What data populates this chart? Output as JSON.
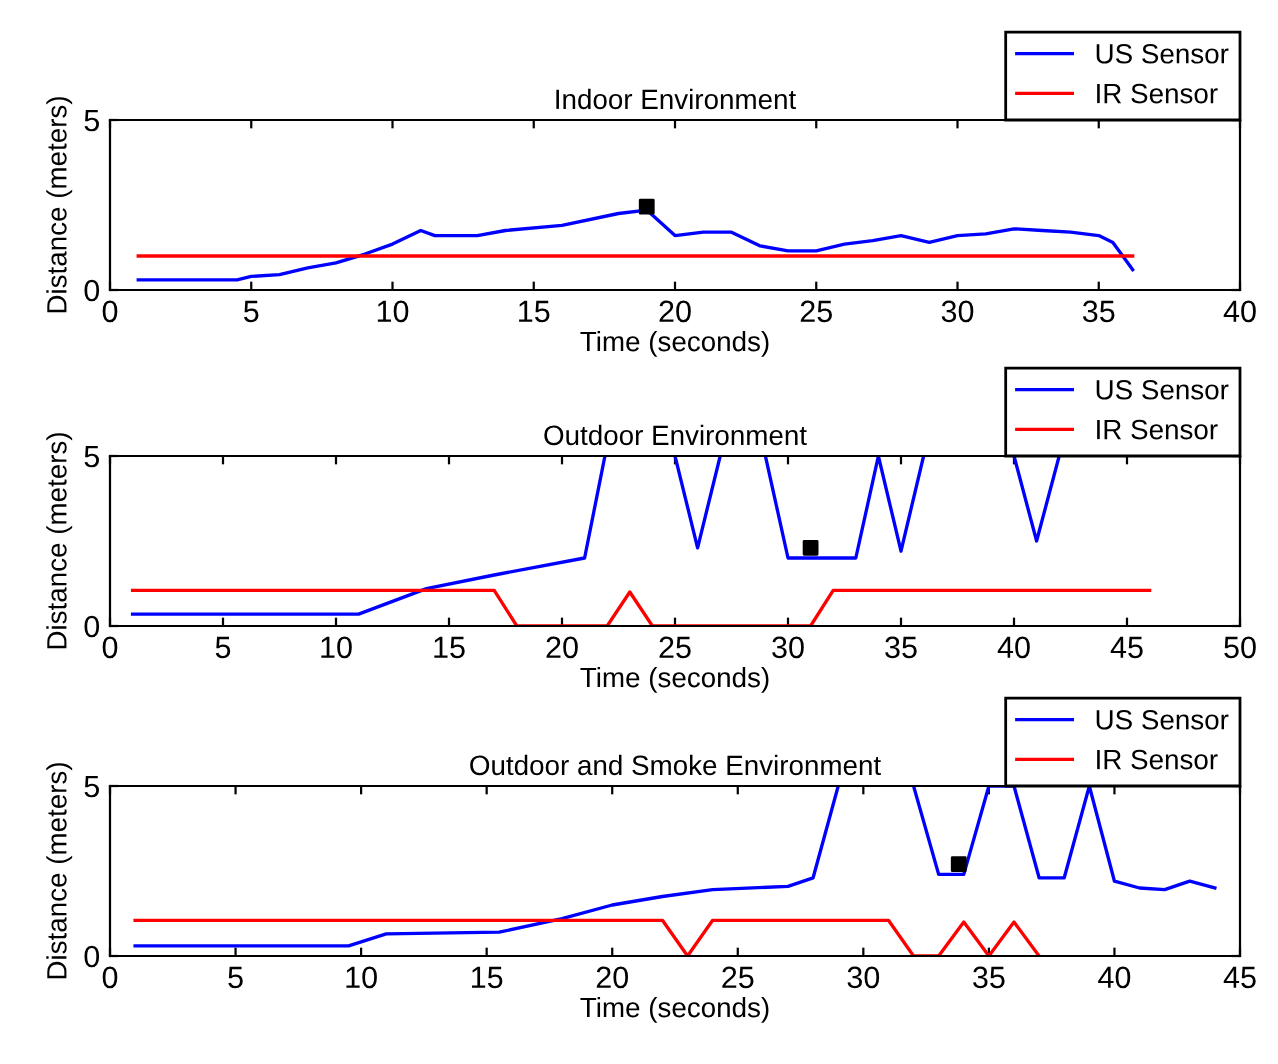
{
  "chart_data": [
    {
      "type": "line",
      "title": "Indoor Environment",
      "xlabel": "Time (seconds)",
      "ylabel": "Distance (meters)",
      "xlim": [
        0,
        40
      ],
      "xticks": [
        0,
        5,
        10,
        15,
        20,
        25,
        30,
        35,
        40
      ],
      "ylim": [
        0,
        5
      ],
      "yticks": [
        0,
        5
      ],
      "grid": false,
      "legend": "top right",
      "line_style": "solid",
      "series": [
        {
          "name": "US Sensor",
          "color": "#0000ff",
          "marker": "none",
          "x": [
            1,
            4.5,
            5,
            6,
            7,
            8,
            9,
            10,
            11,
            11.5,
            13,
            14,
            16,
            18,
            19,
            20,
            21,
            22,
            23,
            24,
            25,
            26,
            27,
            28,
            29,
            30,
            31,
            32,
            33,
            34,
            35,
            35.5,
            36.2
          ],
          "values": [
            0.3,
            0.3,
            0.4,
            0.45,
            0.65,
            0.8,
            1.05,
            1.35,
            1.75,
            1.6,
            1.6,
            1.75,
            1.9,
            2.25,
            2.35,
            1.6,
            1.7,
            1.7,
            1.3,
            1.15,
            1.15,
            1.35,
            1.45,
            1.6,
            1.4,
            1.6,
            1.65,
            1.8,
            1.75,
            1.7,
            1.6,
            1.4,
            0.6
          ]
        },
        {
          "name": "IR Sensor",
          "color": "#ff0000",
          "marker": "none",
          "x": [
            1,
            36.2
          ],
          "values": [
            1.0,
            1.0
          ]
        },
        {
          "type": "scatter",
          "color": "#000000",
          "marker": "square",
          "x": [
            19
          ],
          "values": [
            2.45
          ]
        }
      ]
    },
    {
      "type": "line",
      "title": "Outdoor Environment",
      "xlabel": "Time (seconds)",
      "ylabel": "Distance (meters)",
      "xlim": [
        0,
        50
      ],
      "xticks": [
        0,
        5,
        10,
        15,
        20,
        25,
        30,
        35,
        40,
        45,
        50
      ],
      "ylim": [
        0,
        5
      ],
      "yticks": [
        0,
        5
      ],
      "grid": false,
      "legend": "top right",
      "line_style": "solid",
      "series": [
        {
          "name": "US Sensor",
          "color": "#0000ff",
          "marker": "none",
          "x": [
            1,
            11,
            14,
            17,
            21,
            21.9,
            23.5,
            25,
            26,
            27,
            28,
            29,
            30,
            31,
            33,
            34,
            35,
            36,
            38,
            40,
            41,
            42
          ],
          "values": [
            0.35,
            0.35,
            1.1,
            1.5,
            2.0,
            5,
            null,
            5,
            2.3,
            5,
            null,
            5,
            2.0,
            2.0,
            2.0,
            5,
            2.2,
            5,
            null,
            5,
            2.5,
            5
          ]
        },
        {
          "name": "IR Sensor",
          "color": "#ff0000",
          "marker": "none",
          "x": [
            1,
            17,
            18,
            22,
            23,
            24,
            31,
            32,
            46
          ],
          "values": [
            1.05,
            1.05,
            0,
            0,
            1.0,
            0,
            0,
            1.05,
            1.05
          ]
        },
        {
          "type": "scatter",
          "color": "#000000",
          "marker": "square",
          "x": [
            31
          ],
          "values": [
            2.3
          ]
        }
      ]
    },
    {
      "type": "line",
      "title": "Outdoor and Smoke Environment",
      "xlabel": "Time (seconds)",
      "ylabel": "Distance (meters)",
      "xlim": [
        0,
        45
      ],
      "xticks": [
        0,
        5,
        10,
        15,
        20,
        25,
        30,
        35,
        40,
        45
      ],
      "ylim": [
        0,
        5
      ],
      "yticks": [
        0,
        5
      ],
      "grid": false,
      "legend": "top right",
      "line_style": "solid",
      "series": [
        {
          "name": "US Sensor",
          "color": "#0000ff",
          "marker": "none",
          "x": [
            1,
            9.5,
            11,
            15.5,
            18,
            20,
            22,
            24,
            27,
            28,
            29,
            30.5,
            32,
            33,
            34,
            35,
            36,
            37,
            38,
            39,
            40,
            41,
            42,
            43,
            44
          ],
          "values": [
            0.3,
            0.3,
            0.65,
            0.7,
            1.1,
            1.5,
            1.75,
            1.95,
            2.05,
            2.3,
            5,
            null,
            5,
            2.4,
            2.4,
            5,
            5,
            2.3,
            2.3,
            5,
            2.2,
            2.0,
            1.95,
            2.2,
            2.0
          ]
        },
        {
          "name": "IR Sensor",
          "color": "#ff0000",
          "marker": "none",
          "x": [
            1,
            22,
            23,
            24,
            31,
            32,
            33,
            34,
            35,
            36,
            37
          ],
          "values": [
            1.05,
            1.05,
            0,
            1.05,
            1.05,
            0,
            0,
            1.0,
            0,
            1.0,
            0
          ]
        },
        {
          "type": "scatter",
          "color": "#000000",
          "marker": "square",
          "x": [
            33.8
          ],
          "values": [
            2.7
          ]
        }
      ]
    }
  ]
}
